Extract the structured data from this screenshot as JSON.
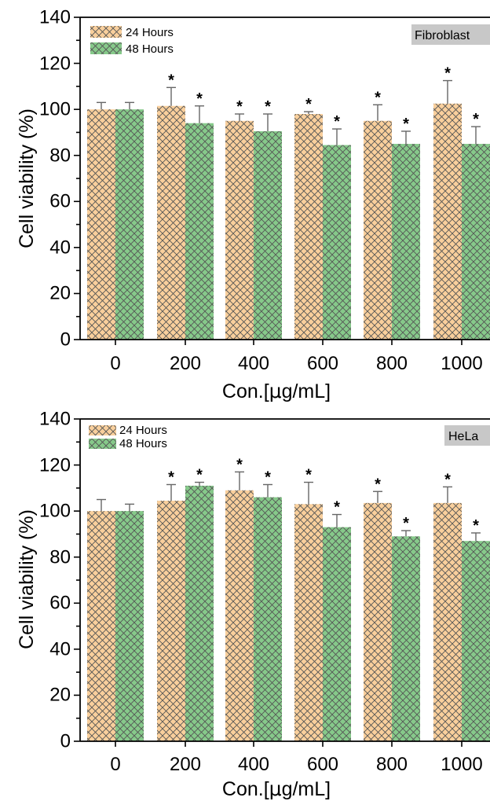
{
  "colors": {
    "series_24h_fill": "#f9cf9c",
    "series_48h_fill": "#86c98a",
    "hatch": "#555555",
    "tag_bg": "#c8c8c8"
  },
  "chart_data": [
    {
      "type": "bar",
      "tag": "Fibroblast",
      "xlabel_prefix": "Con.[",
      "xlabel_mu": "μ",
      "xlabel_suffix": "g/mL]",
      "ylabel": "Cell viability (%)",
      "categories": [
        "0",
        "200",
        "400",
        "600",
        "800",
        "1000"
      ],
      "ylim": [
        0,
        140
      ],
      "yticks": [
        "0",
        "20",
        "40",
        "60",
        "80",
        "100",
        "120",
        "140"
      ],
      "legend_position": "top-left",
      "series": [
        {
          "name": "24 Hours",
          "values": [
            100,
            101.5,
            95,
            98,
            95,
            102.5
          ],
          "errors": [
            3,
            8,
            3,
            1,
            7,
            10
          ],
          "significance": [
            "",
            "*",
            "*",
            "*",
            "*",
            "*"
          ]
        },
        {
          "name": "48 Hours",
          "values": [
            100,
            94,
            90.5,
            84.5,
            85,
            85
          ],
          "errors": [
            3,
            7.5,
            7.5,
            7,
            5.5,
            7.5
          ],
          "significance": [
            "",
            "*",
            "*",
            "*",
            "*",
            "*"
          ]
        }
      ]
    },
    {
      "type": "bar",
      "tag": "HeLa",
      "xlabel_prefix": "Con.[",
      "xlabel_mu": "μ",
      "xlabel_suffix": "g/mL]",
      "ylabel": "Cell viability (%)",
      "categories": [
        "0",
        "200",
        "400",
        "600",
        "800",
        "1000"
      ],
      "ylim": [
        0,
        140
      ],
      "yticks": [
        "0",
        "20",
        "40",
        "60",
        "80",
        "100",
        "120",
        "140"
      ],
      "legend_position": "top-left",
      "series": [
        {
          "name": "24 Hours",
          "values": [
            100,
            104.5,
            109,
            103,
            103.5,
            103.5
          ],
          "errors": [
            5,
            7,
            8,
            9.5,
            5,
            7
          ],
          "significance": [
            "",
            "*",
            "*",
            "*",
            "*",
            "*"
          ]
        },
        {
          "name": "48 Hours",
          "values": [
            100,
            111,
            106,
            93,
            89,
            87
          ],
          "errors": [
            3,
            1.5,
            5.5,
            5.5,
            2.5,
            3.5
          ],
          "significance": [
            "",
            "*",
            "*",
            "*",
            "*",
            "*"
          ]
        }
      ]
    }
  ]
}
